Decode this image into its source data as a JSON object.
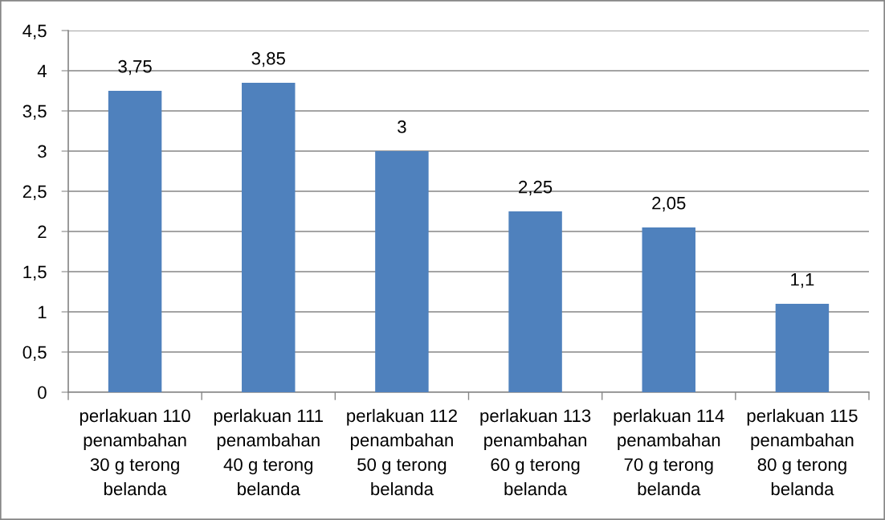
{
  "chart_data": {
    "type": "bar",
    "categories": [
      "perlakuan 110\npenambahan\n30 g terong\nbelanda",
      "perlakuan 111\npenambahan\n40 g terong\nbelanda",
      "perlakuan 112\npenambahan\n50 g terong\nbelanda",
      "perlakuan 113\npenambahan\n60 g terong\nbelanda",
      "perlakuan 114\npenambahan\n70 g terong\nbelanda",
      "perlakuan 115\npenambahan\n80 g terong\nbelanda"
    ],
    "values": [
      3.75,
      3.85,
      3,
      2.25,
      2.05,
      1.1
    ],
    "value_labels": [
      "3,75",
      "3,85",
      "3",
      "2,25",
      "2,05",
      "1,1"
    ],
    "color": "#4f81bd",
    "ylim": [
      0,
      4.5
    ],
    "yticks": [
      0,
      {
        "value": 0.5,
        "label": "0,5"
      },
      1,
      {
        "value": 1.5,
        "label": "1,5"
      },
      2,
      {
        "value": 2.5,
        "label": "2,5"
      },
      3,
      {
        "value": 3.5,
        "label": "3,5"
      },
      4,
      {
        "value": 4.5,
        "label": "4,5"
      }
    ],
    "grid": "y"
  }
}
